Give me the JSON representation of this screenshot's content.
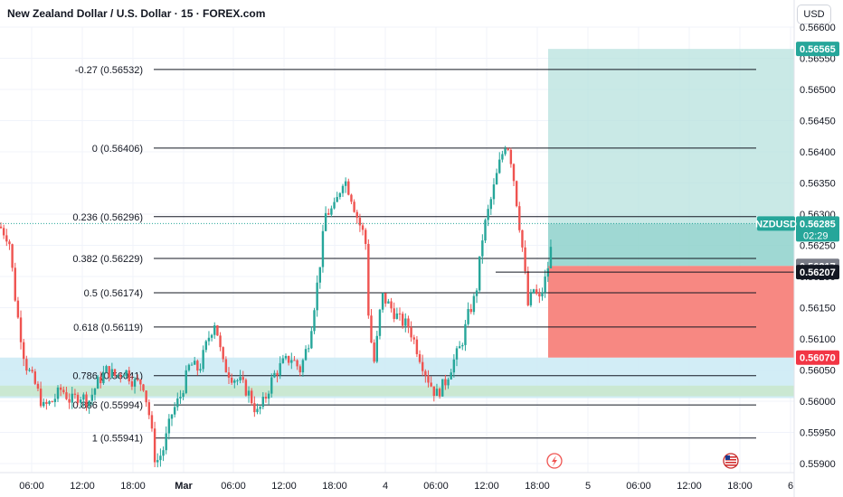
{
  "header": {
    "title": "New Zealand Dollar / U.S. Dollar · 15 · FOREX.com",
    "currency": "USD"
  },
  "colors": {
    "up": "#26a69a",
    "down": "#ef5350",
    "target_zone": "#b2dfdb",
    "stop_zone": "#f7827b",
    "demand_zone": "#cdebf5",
    "demand_inner": "#c8e6c9",
    "fib_line": "#131722",
    "price_tag": "#26a69a",
    "stop_tag": "#f23645",
    "gray_tag": "#787b86",
    "dark_tag": "#131722"
  },
  "chart_data": {
    "type": "candlestick",
    "title": "New Zealand Dollar / U.S. Dollar · 15 · FOREX.com",
    "symbol": "NZDUSD",
    "interval": "15",
    "y_axis": {
      "min": 0.5588,
      "max": 0.5665,
      "ticks": [
        "0.56600",
        "0.56550",
        "0.56500",
        "0.56450",
        "0.56400",
        "0.56350",
        "0.56300",
        "0.56250",
        "0.56200",
        "0.56150",
        "0.56100",
        "0.56050",
        "0.56000",
        "0.55950",
        "0.55900"
      ]
    },
    "x_axis": {
      "labels": [
        "06:00",
        "12:00",
        "18:00",
        "Mar",
        "06:00",
        "12:00",
        "18:00",
        "4",
        "06:00",
        "12:00",
        "18:00",
        "5",
        "06:00",
        "12:00",
        "18:00",
        "6"
      ]
    },
    "fib_levels": [
      {
        "ratio": -0.27,
        "price": 0.56532,
        "label": "-0.27 (0.56532)"
      },
      {
        "ratio": 0,
        "price": 0.56406,
        "label": "0 (0.56406)"
      },
      {
        "ratio": 0.236,
        "price": 0.56296,
        "label": "0.236 (0.56296)"
      },
      {
        "ratio": 0.382,
        "price": 0.56229,
        "label": "0.382 (0.56229)"
      },
      {
        "ratio": 0.5,
        "price": 0.56174,
        "label": "0.5 (0.56174)"
      },
      {
        "ratio": 0.618,
        "price": 0.56119,
        "label": "0.618 (0.56119)"
      },
      {
        "ratio": 0.786,
        "price": 0.56041,
        "label": "0.786 (0.56041)"
      },
      {
        "ratio": 0.886,
        "price": 0.55994,
        "label": "0.886 (0.55994)"
      },
      {
        "ratio": 1,
        "price": 0.55941,
        "label": "1 (0.55941)"
      }
    ],
    "position": {
      "target": 0.56565,
      "entry": 0.56217,
      "stop": 0.5607
    },
    "zones": [
      {
        "top": 0.5607,
        "bottom": 0.56005
      },
      {
        "top": 0.56025,
        "bottom": 0.56008
      }
    ],
    "price_tags": [
      {
        "value": 0.56565,
        "label": "0.56565",
        "style": "up"
      },
      {
        "value": 0.56285,
        "label": "0.56285",
        "sub": "02:29",
        "symbol": "NZDUSD",
        "style": "up"
      },
      {
        "value": 0.56217,
        "label": "0.56217",
        "style": "gray"
      },
      {
        "value": 0.56207,
        "label": "0.56207",
        "style": "dark"
      },
      {
        "value": 0.5607,
        "label": "0.56070",
        "style": "stop"
      }
    ],
    "last_price": 0.56285,
    "waypoints": [
      [
        0,
        0.5628
      ],
      [
        10,
        0.5626
      ],
      [
        18,
        0.5615
      ],
      [
        28,
        0.5606
      ],
      [
        38,
        0.5603
      ],
      [
        48,
        0.5599
      ],
      [
        58,
        0.56
      ],
      [
        68,
        0.5602
      ],
      [
        78,
        0.56
      ],
      [
        88,
        0.5601
      ],
      [
        98,
        0.56
      ],
      [
        108,
        0.5603
      ],
      [
        118,
        0.5605
      ],
      [
        128,
        0.5604
      ],
      [
        138,
        0.5605
      ],
      [
        148,
        0.5603
      ],
      [
        158,
        0.5603
      ],
      [
        166,
        0.5597
      ],
      [
        172,
        0.559
      ],
      [
        180,
        0.5592
      ],
      [
        190,
        0.5598
      ],
      [
        200,
        0.5601
      ],
      [
        210,
        0.5606
      ],
      [
        220,
        0.5605
      ],
      [
        230,
        0.561
      ],
      [
        238,
        0.5613
      ],
      [
        246,
        0.5606
      ],
      [
        256,
        0.5604
      ],
      [
        266,
        0.5603
      ],
      [
        276,
        0.5601
      ],
      [
        284,
        0.5598
      ],
      [
        292,
        0.56
      ],
      [
        302,
        0.5604
      ],
      [
        312,
        0.5606
      ],
      [
        322,
        0.5607
      ],
      [
        332,
        0.5605
      ],
      [
        342,
        0.561
      ],
      [
        352,
        0.562
      ],
      [
        360,
        0.563
      ],
      [
        370,
        0.5631
      ],
      [
        380,
        0.5636
      ],
      [
        388,
        0.5633
      ],
      [
        396,
        0.5629
      ],
      [
        404,
        0.5626
      ],
      [
        408,
        0.5612
      ],
      [
        414,
        0.5606
      ],
      [
        422,
        0.5617
      ],
      [
        432,
        0.5615
      ],
      [
        442,
        0.5613
      ],
      [
        452,
        0.5612
      ],
      [
        462,
        0.5608
      ],
      [
        472,
        0.5604
      ],
      [
        482,
        0.5601
      ],
      [
        492,
        0.5603
      ],
      [
        500,
        0.5606
      ],
      [
        510,
        0.5609
      ],
      [
        518,
        0.5614
      ],
      [
        526,
        0.5617
      ],
      [
        534,
        0.5627
      ],
      [
        544,
        0.5633
      ],
      [
        552,
        0.5638
      ],
      [
        560,
        0.5642
      ],
      [
        566,
        0.5638
      ],
      [
        572,
        0.5631
      ],
      [
        578,
        0.5624
      ],
      [
        584,
        0.5615
      ],
      [
        590,
        0.5618
      ],
      [
        596,
        0.5616
      ],
      [
        602,
        0.5619
      ],
      [
        608,
        0.5623
      ],
      [
        612,
        0.56285
      ]
    ]
  }
}
